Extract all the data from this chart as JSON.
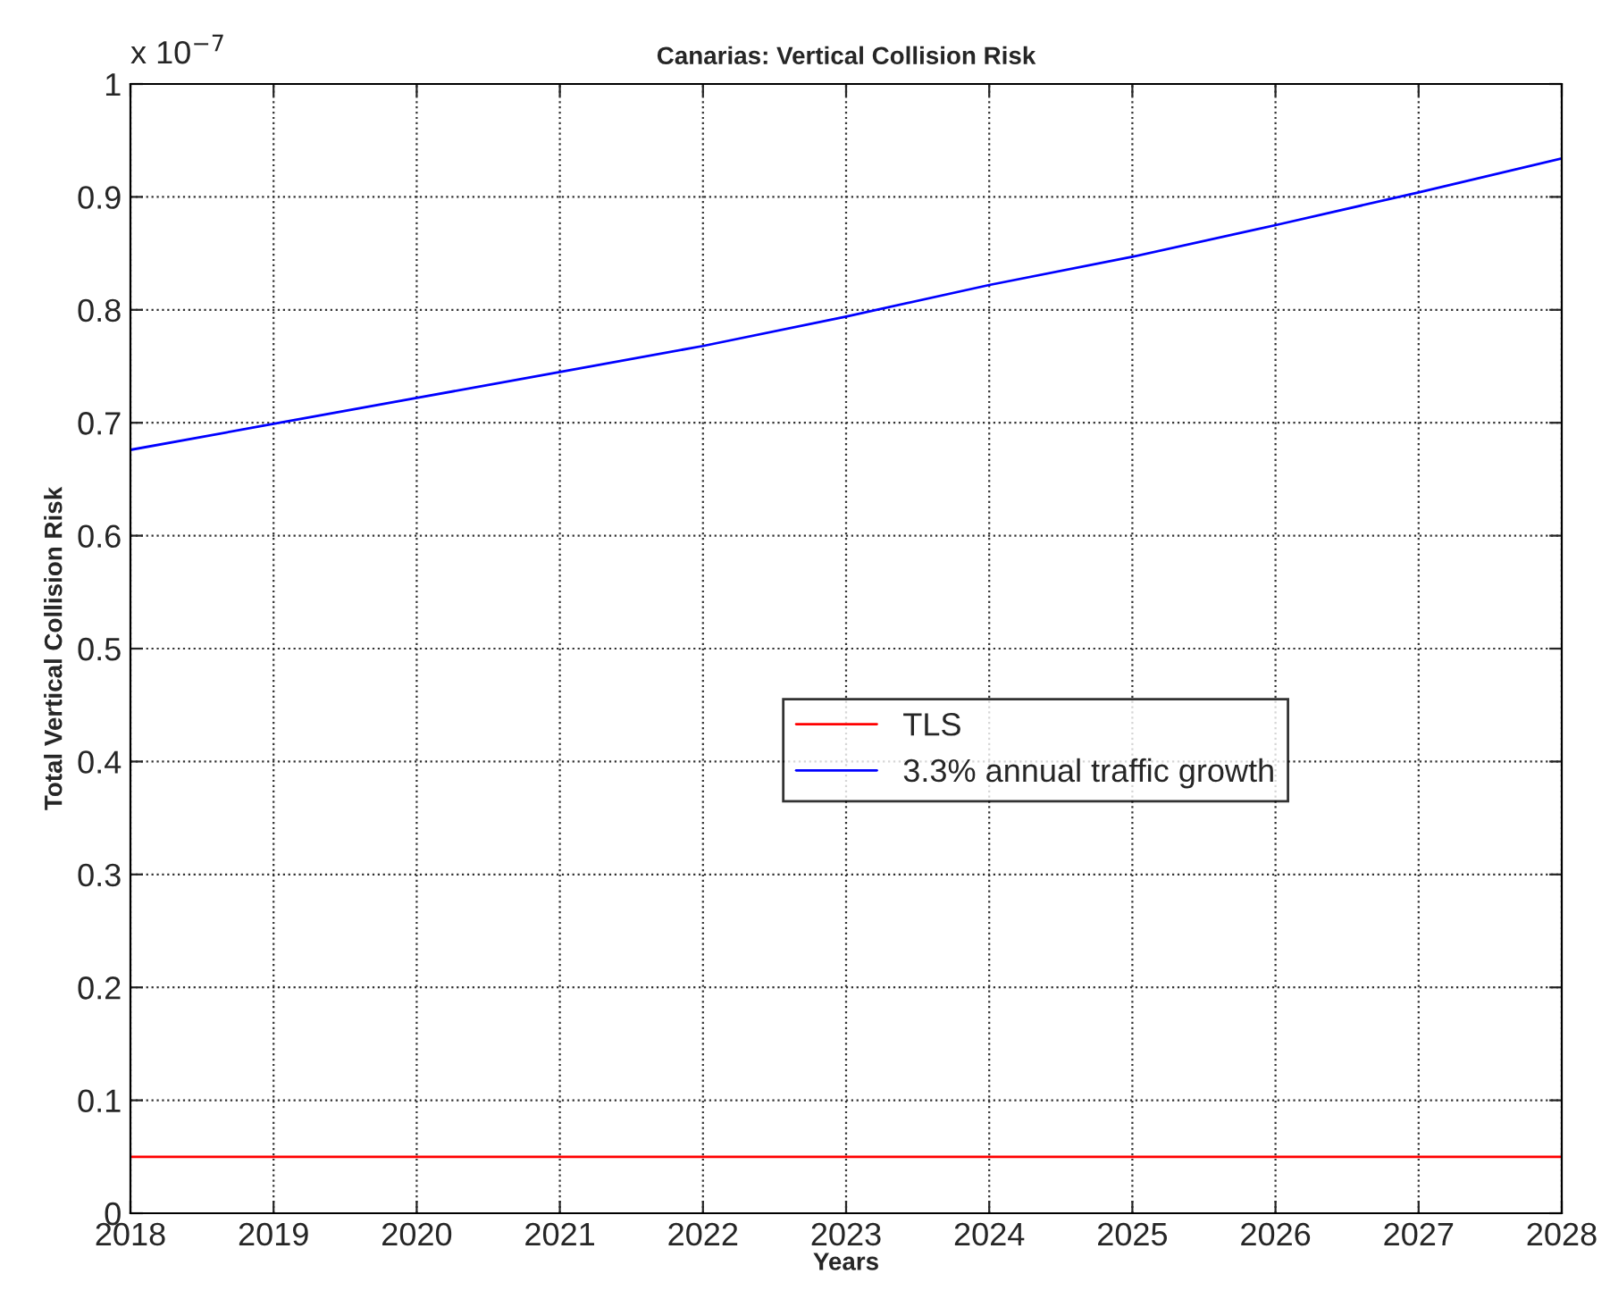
{
  "chart_data": {
    "type": "line",
    "title": "Canarias: Vertical Collision Risk",
    "xlabel": "Years",
    "ylabel": "Total Vertical Collision Risk",
    "annotations": [
      "x 10$^{−7}$"
    ],
    "x": [
      2018,
      2019,
      2020,
      2021,
      2022,
      2023,
      2024,
      2025,
      2026,
      2027,
      2028
    ],
    "series": [
      {
        "name": "TLS",
        "color": "#ff0000",
        "x": [
          2018,
          2028
        ],
        "values": [
          0.05,
          0.05
        ]
      },
      {
        "name": "3.3% annual traffic growth",
        "color": "#0000ff",
        "values": [
          0.676,
          0.699,
          0.722,
          0.745,
          0.768,
          0.794,
          0.822,
          0.847,
          0.875,
          0.904,
          0.934
        ]
      }
    ],
    "xlim": [
      2018,
      2028
    ],
    "xticks": [
      2018,
      2019,
      2020,
      2021,
      2022,
      2023,
      2024,
      2025,
      2026,
      2027,
      2028
    ],
    "ylim": [
      0,
      1
    ],
    "yticks": [
      0,
      0.1,
      0.2,
      0.3,
      0.4,
      0.5,
      0.6,
      0.7,
      0.8,
      0.9,
      1
    ],
    "grid": true,
    "legend": "center right",
    "marker": "none",
    "line_style": "solid"
  }
}
